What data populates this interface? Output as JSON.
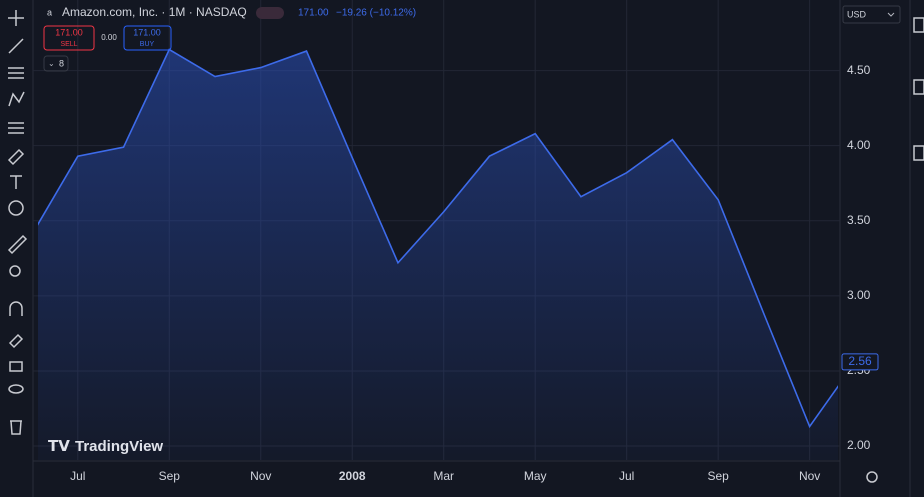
{
  "header": {
    "symbol": "Amazon.com, Inc. · 1M · NASDAQ",
    "price": "171.00",
    "change": "−19.26 (−10.12%)",
    "sell": {
      "price": "171.00",
      "label": "SELL"
    },
    "spread": "0.00",
    "buy": {
      "price": "171.00",
      "label": "BUY"
    },
    "indicators": "8",
    "currency": "USD",
    "logo": "TradingView"
  },
  "chart_data": {
    "type": "area",
    "categories": [
      null,
      "Jul",
      null,
      "Sep",
      null,
      "Nov",
      null,
      "2008",
      null,
      "Mar",
      null,
      "May",
      null,
      "Jul",
      null,
      "Sep",
      null,
      "Nov",
      null
    ],
    "values": [
      3.41,
      3.93,
      3.99,
      4.64,
      4.46,
      4.52,
      4.63,
      3.92,
      3.22,
      3.56,
      3.93,
      4.08,
      3.66,
      3.82,
      4.04,
      3.64,
      2.88,
      2.13,
      2.56
    ],
    "color": "#3d6bea",
    "xlim": [
      0.13,
      17.62
    ],
    "ylim": [
      1.907,
      4.97
    ],
    "yticks": [
      {
        "value": 2,
        "label": "2.00"
      },
      {
        "value": 2.5,
        "label": "2.50"
      },
      {
        "value": 3,
        "label": "3.00"
      },
      {
        "value": 3.5,
        "label": "3.50"
      },
      {
        "value": 4,
        "label": "4.00"
      },
      {
        "value": 4.5,
        "label": "4.50"
      }
    ],
    "grid": true
  }
}
